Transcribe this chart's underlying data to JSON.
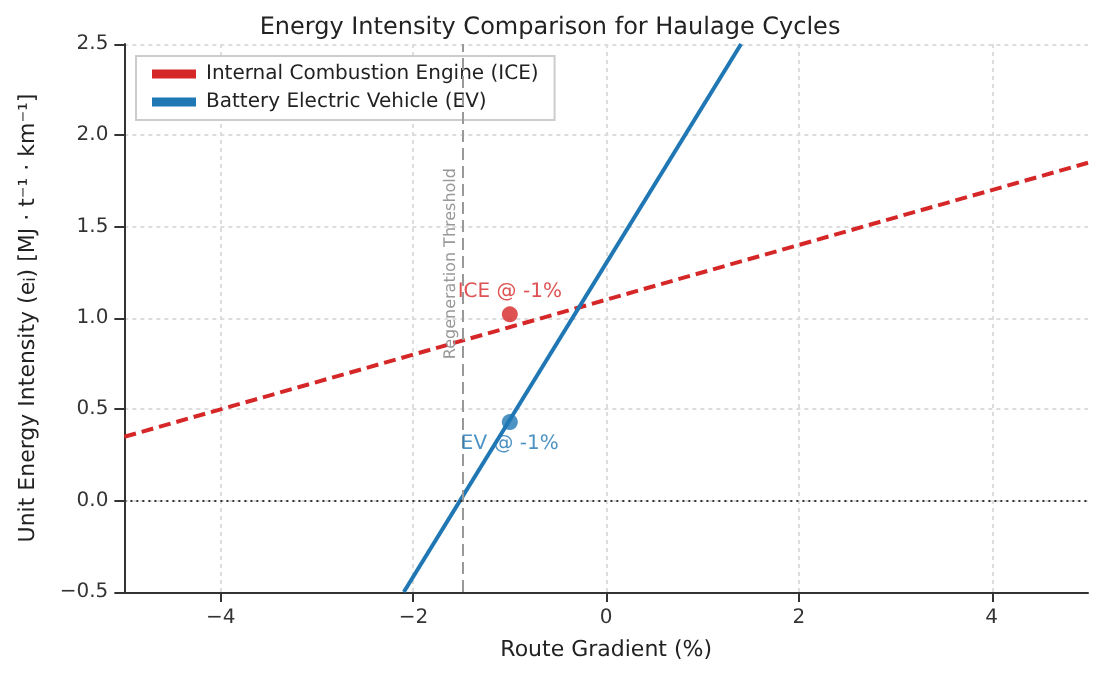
{
  "chart_data": {
    "type": "line",
    "title": "Energy Intensity Comparison for Haulage Cycles",
    "xlabel": "Route Gradient (%)",
    "ylabel": "Unit Energy Intensity (e$_{i}$) [MJ · t⁻¹ · km⁻¹]",
    "series": [
      {
        "name": "Internal Combustion Engine (ICE)",
        "color": "#d62728",
        "line_style": "dashed",
        "marker": "none",
        "x": [
          -5,
          5
        ],
        "values": [
          0.35,
          1.85
        ]
      },
      {
        "name": "Battery Electric Vehicle (EV)",
        "color": "#1f77b4",
        "line_style": "solid",
        "marker": "none",
        "x": [
          -2.1,
          1.4
        ],
        "values": [
          -0.5,
          2.5
        ]
      },
      {
        "type": "scatter",
        "marker": "circle",
        "color": "#d62728",
        "x": [
          -1
        ],
        "values": [
          1.02
        ]
      },
      {
        "type": "scatter",
        "marker": "circle",
        "color": "#1f77b4",
        "x": [
          -1
        ],
        "values": [
          0.43
        ]
      }
    ],
    "annotations": [
      {
        "text": "ICE @ -1%",
        "x": -1,
        "y": 1.02
      },
      {
        "text": "EV @ -1%",
        "x": -1,
        "y": 0.43
      }
    ],
    "ref_lines": [
      {
        "axis": "x",
        "value": -1.5,
        "label": "Regeneration Threshold",
        "color": "#999999",
        "line_style": "dashed"
      },
      {
        "axis": "y",
        "value": 0,
        "color": "#333333",
        "line_style": "dotted"
      }
    ],
    "xlim": [
      -5,
      5
    ],
    "xticks": [
      {
        "value": -4,
        "label": "−4"
      },
      {
        "value": -2,
        "label": "−2"
      },
      0,
      2,
      4
    ],
    "ylim": [
      -0.5,
      2.5
    ],
    "yticks": [
      {
        "value": -0.5,
        "label": "−0.5"
      },
      {
        "value": 0,
        "label": "0.0"
      },
      {
        "value": 0.5,
        "label": "0.5"
      },
      {
        "value": 1,
        "label": "1.0"
      },
      {
        "value": 1.5,
        "label": "1.5"
      },
      {
        "value": 2,
        "label": "2.0"
      },
      {
        "value": 2.5,
        "label": "2.5"
      }
    ],
    "grid": true,
    "legend": "top left"
  }
}
